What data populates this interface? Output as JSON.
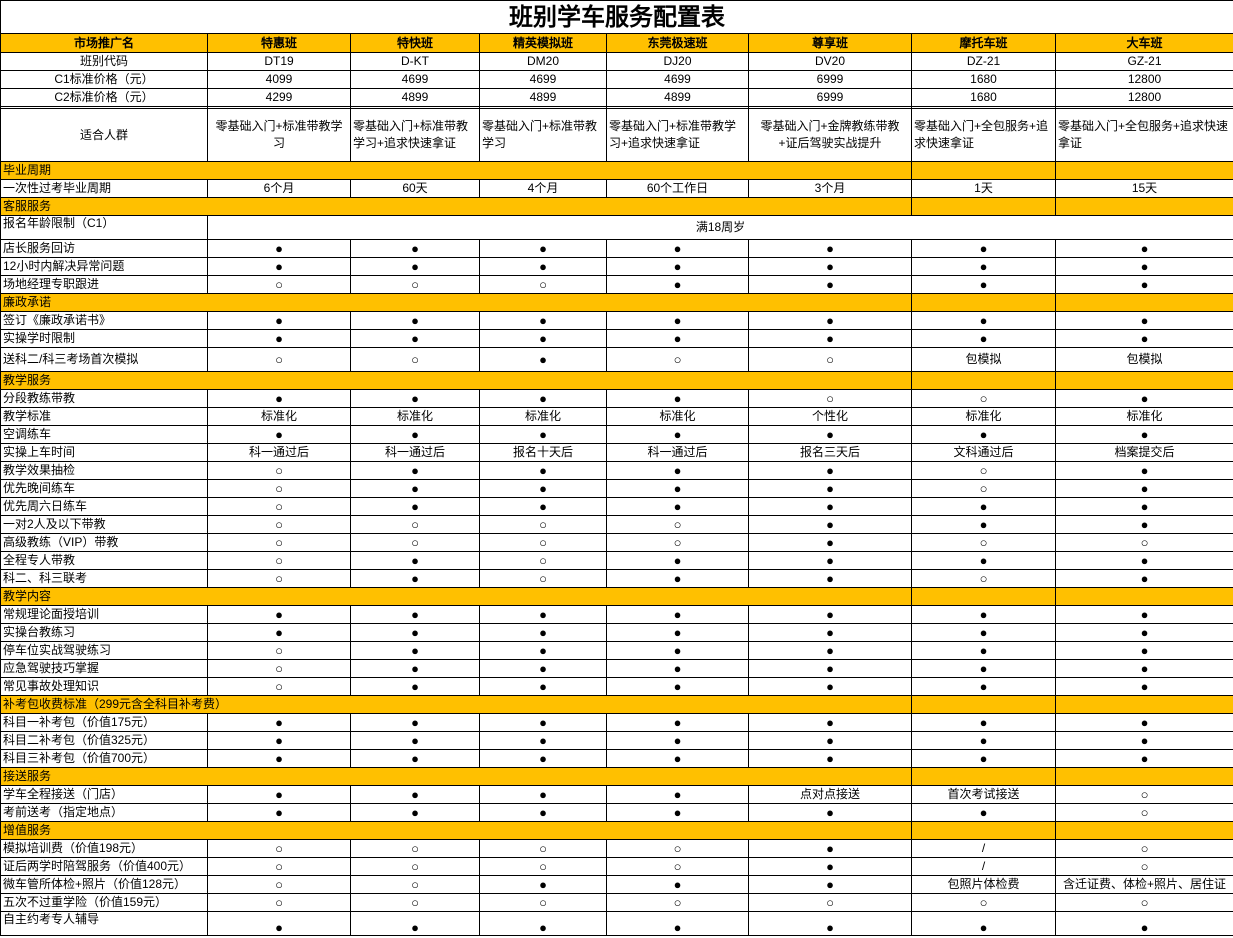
{
  "title": "班别学车服务配置表",
  "header": [
    "市场推广名",
    "特惠班",
    "特快班",
    "精英模拟班",
    "东莞极速班",
    "尊享班",
    "摩托车班",
    "大车班"
  ],
  "colors": {
    "section_bg": "#ffc000",
    "border": "#000000"
  },
  "symbols": {
    "included": "●",
    "not_included": "○"
  },
  "rows": [
    {
      "type": "info",
      "label": "班别代码",
      "values": [
        "DT19",
        "D-KT",
        "DM20",
        "DJ20",
        "DV20",
        "DZ-21",
        "GZ-21"
      ]
    },
    {
      "type": "info",
      "label": "C1标准价格（元）",
      "values": [
        "4099",
        "4699",
        "4699",
        "4699",
        "6999",
        "1680",
        "12800"
      ]
    },
    {
      "type": "info",
      "label": "C2标准价格（元）",
      "values": [
        "4299",
        "4899",
        "4899",
        "4899",
        "6999",
        "1680",
        "12800"
      ]
    },
    {
      "type": "gap"
    },
    {
      "type": "audience",
      "label": "适合人群",
      "values": [
        "零基础入门+标准带教学习",
        "零基础入门+标准带教学习+追求快速拿证",
        "零基础入门+标准带教学习",
        "零基础入门+标准带教学习+追求快速拿证",
        "零基础入门+金牌教练带教+证后驾驶实战提升",
        "零基础入门+全包服务+追求快速拿证",
        "零基础入门+全包服务+追求快速拿证"
      ]
    },
    {
      "type": "section",
      "label": "毕业周期"
    },
    {
      "type": "item",
      "label": "一次性过考毕业周期",
      "values": [
        "6个月",
        "60天",
        "4个月",
        "60个工作日",
        "3个月",
        "1天",
        "15天"
      ]
    },
    {
      "type": "section",
      "label": "客服服务"
    },
    {
      "type": "merged",
      "label": "报名年龄限制（C1）",
      "value": "满18周岁"
    },
    {
      "type": "item",
      "label": "店长服务回访",
      "values": [
        "●",
        "●",
        "●",
        "●",
        "●",
        "●",
        "●"
      ]
    },
    {
      "type": "item",
      "label": "12小时内解决异常问题",
      "values": [
        "●",
        "●",
        "●",
        "●",
        "●",
        "●",
        "●"
      ]
    },
    {
      "type": "item",
      "label": "场地经理专职跟进",
      "values": [
        "○",
        "○",
        "○",
        "●",
        "●",
        "●",
        "●"
      ]
    },
    {
      "type": "section",
      "label": "廉政承诺"
    },
    {
      "type": "item",
      "label": "签订《廉政承诺书》",
      "values": [
        "●",
        "●",
        "●",
        "●",
        "●",
        "●",
        "●"
      ]
    },
    {
      "type": "item",
      "label": "实操学时限制",
      "values": [
        "●",
        "●",
        "●",
        "●",
        "●",
        "●",
        "●"
      ]
    },
    {
      "type": "item",
      "tall": true,
      "label": "送科二/科三考场首次模拟",
      "values": [
        "○",
        "○",
        "●",
        "○",
        "○",
        "包模拟",
        "包模拟"
      ]
    },
    {
      "type": "section",
      "label": "教学服务"
    },
    {
      "type": "item",
      "label": "分段教练带教",
      "values": [
        "●",
        "●",
        "●",
        "●",
        "○",
        "○",
        "●"
      ]
    },
    {
      "type": "item",
      "label": "教学标准",
      "values": [
        "标准化",
        "标准化",
        "标准化",
        "标准化",
        "个性化",
        "标准化",
        "标准化"
      ]
    },
    {
      "type": "item",
      "label": "空调练车",
      "values": [
        "●",
        "●",
        "●",
        "●",
        "●",
        "●",
        "●"
      ]
    },
    {
      "type": "item",
      "label": "实操上车时间",
      "values": [
        "科一通过后",
        "科一通过后",
        "报名十天后",
        "科一通过后",
        "报名三天后",
        "文科通过后",
        "档案提交后"
      ]
    },
    {
      "type": "item",
      "label": "教学效果抽检",
      "values": [
        "○",
        "●",
        "●",
        "●",
        "●",
        "○",
        "●"
      ]
    },
    {
      "type": "item",
      "label": "优先晚间练车",
      "values": [
        "○",
        "●",
        "●",
        "●",
        "●",
        "○",
        "●"
      ]
    },
    {
      "type": "item",
      "label": "优先周六日练车",
      "values": [
        "○",
        "●",
        "●",
        "●",
        "●",
        "●",
        "●"
      ]
    },
    {
      "type": "item",
      "label": "一对2人及以下带教",
      "values": [
        "○",
        "○",
        "○",
        "○",
        "●",
        "●",
        "●"
      ]
    },
    {
      "type": "item",
      "label": "高级教练（VIP）带教",
      "values": [
        "○",
        "○",
        "○",
        "○",
        "●",
        "○",
        "○"
      ]
    },
    {
      "type": "item",
      "label": "全程专人带教",
      "values": [
        "○",
        "●",
        "○",
        "●",
        "●",
        "●",
        "●"
      ]
    },
    {
      "type": "item",
      "label": "科二、科三联考",
      "values": [
        "○",
        "●",
        "○",
        "●",
        "●",
        "○",
        "●"
      ]
    },
    {
      "type": "section",
      "label": "教学内容"
    },
    {
      "type": "item",
      "label": "常规理论面授培训",
      "values": [
        "●",
        "●",
        "●",
        "●",
        "●",
        "●",
        "●"
      ]
    },
    {
      "type": "item",
      "label": "实操台教练习",
      "values": [
        "●",
        "●",
        "●",
        "●",
        "●",
        "●",
        "●"
      ]
    },
    {
      "type": "item",
      "label": "停车位实战驾驶练习",
      "values": [
        "○",
        "●",
        "●",
        "●",
        "●",
        "●",
        "●"
      ]
    },
    {
      "type": "item",
      "label": "应急驾驶技巧掌握",
      "values": [
        "○",
        "●",
        "●",
        "●",
        "●",
        "●",
        "●"
      ]
    },
    {
      "type": "item",
      "label": "常见事故处理知识",
      "values": [
        "○",
        "●",
        "●",
        "●",
        "●",
        "●",
        "●"
      ]
    },
    {
      "type": "section",
      "label": "补考包收费标准（299元含全科目补考费）"
    },
    {
      "type": "item",
      "label": "科目一补考包（价值175元）",
      "values": [
        "●",
        "●",
        "●",
        "●",
        "●",
        "●",
        "●"
      ]
    },
    {
      "type": "item",
      "label": "科目二补考包（价值325元）",
      "values": [
        "●",
        "●",
        "●",
        "●",
        "●",
        "●",
        "●"
      ]
    },
    {
      "type": "item",
      "label": "科目三补考包（价值700元）",
      "values": [
        "●",
        "●",
        "●",
        "●",
        "●",
        "●",
        "●"
      ]
    },
    {
      "type": "section",
      "label": "接送服务"
    },
    {
      "type": "item",
      "label": "学车全程接送（门店）",
      "values": [
        "●",
        "●",
        "●",
        "●",
        "点对点接送",
        "首次考试接送",
        "○"
      ]
    },
    {
      "type": "item",
      "label": "考前送考（指定地点）",
      "values": [
        "●",
        "●",
        "●",
        "●",
        "●",
        "●",
        "○"
      ]
    },
    {
      "type": "section",
      "label": "增值服务"
    },
    {
      "type": "item",
      "label": "模拟培训费（价值198元）",
      "values": [
        "○",
        "○",
        "○",
        "○",
        "●",
        "/",
        "○"
      ]
    },
    {
      "type": "item",
      "label": "证后两学时陪驾服务（价值400元）",
      "values": [
        "○",
        "○",
        "○",
        "○",
        "●",
        "/",
        "○"
      ]
    },
    {
      "type": "item",
      "label": "微车管所体检+照片（价值128元）",
      "values": [
        "○",
        "○",
        "●",
        "●",
        "●",
        "包照片体检费",
        "含迁证费、体检+照片、居住证"
      ]
    },
    {
      "type": "item",
      "label": "五次不过重学险（价值159元）",
      "values": [
        "○",
        "○",
        "○",
        "○",
        "○",
        "○",
        "○"
      ]
    },
    {
      "type": "item",
      "tall": true,
      "top": true,
      "label": "自主约考专人辅导",
      "values": [
        "●",
        "●",
        "●",
        "●",
        "●",
        "●",
        "●"
      ]
    }
  ]
}
